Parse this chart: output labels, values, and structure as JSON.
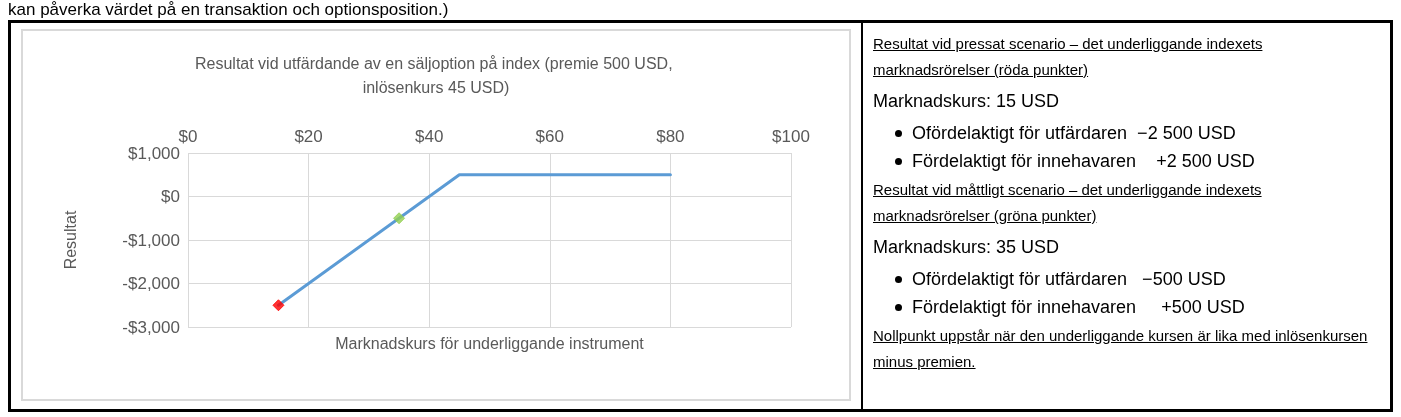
{
  "chart_data": [
    {
      "type": "line",
      "title": "Resultat vid utfärdande av en säljoption på index (premie 500 USD, inlösenkurs 45 USD)",
      "xlabel": "Marknadskurs för underliggande instrument",
      "ylabel": "Resultat",
      "annotations": [
        "kan påverka värdet på en transaktion och optionsposition.)"
      ],
      "xlim": [
        0,
        100
      ],
      "xticks": [
        {
          "value": 0,
          "label": "$0"
        },
        {
          "value": 20,
          "label": "$20"
        },
        {
          "value": 40,
          "label": "$40"
        },
        {
          "value": 60,
          "label": "$60"
        },
        {
          "value": 80,
          "label": "$80"
        },
        {
          "value": 100,
          "label": "$100"
        }
      ],
      "ylim": [
        -3000,
        1000
      ],
      "yticks": [
        {
          "value": -3000,
          "label": "-$3,000"
        },
        {
          "value": -2000,
          "label": "-$2,000"
        },
        {
          "value": -1000,
          "label": "-$1,000"
        },
        {
          "value": 0,
          "label": "$0"
        },
        {
          "value": 1000,
          "label": "$1,000"
        }
      ],
      "grid": true,
      "series": [
        {
          "type": "line",
          "x": [
            15,
            45,
            80
          ],
          "values": [
            -2500,
            500,
            500
          ],
          "color": "#5b9bd5",
          "marker": "none",
          "line_style": "solid"
        },
        {
          "type": "scatter",
          "x": [
            15,
            35
          ],
          "values": [
            -2500,
            -500
          ],
          "colors": [
            "#ff0000",
            "#92d050"
          ],
          "marker": "diamond"
        }
      ]
    },
    {
      "type": "other",
      "annotations": [
        "Resultat vid pressat scenario – det underliggande indexets marknadsrörelser (röda punkter)",
        "Marknadskurs: 15 USD",
        "Ofördelaktigt för utfärdaren  −2 500 USD",
        "Fördelaktigt för innehavaren    +2 500 USD",
        "Resultat vid måttligt scenario – det underliggande indexets marknadsrörelser (gröna punkter)",
        "Marknadskurs: 35 USD",
        "Ofördelaktigt för utfärdaren   −500 USD",
        "Fördelaktigt för innehavaren     +500 USD",
        "Nollpunkt uppstår när den underliggande kursen är lika med inlösenkursen minus premien."
      ]
    }
  ]
}
